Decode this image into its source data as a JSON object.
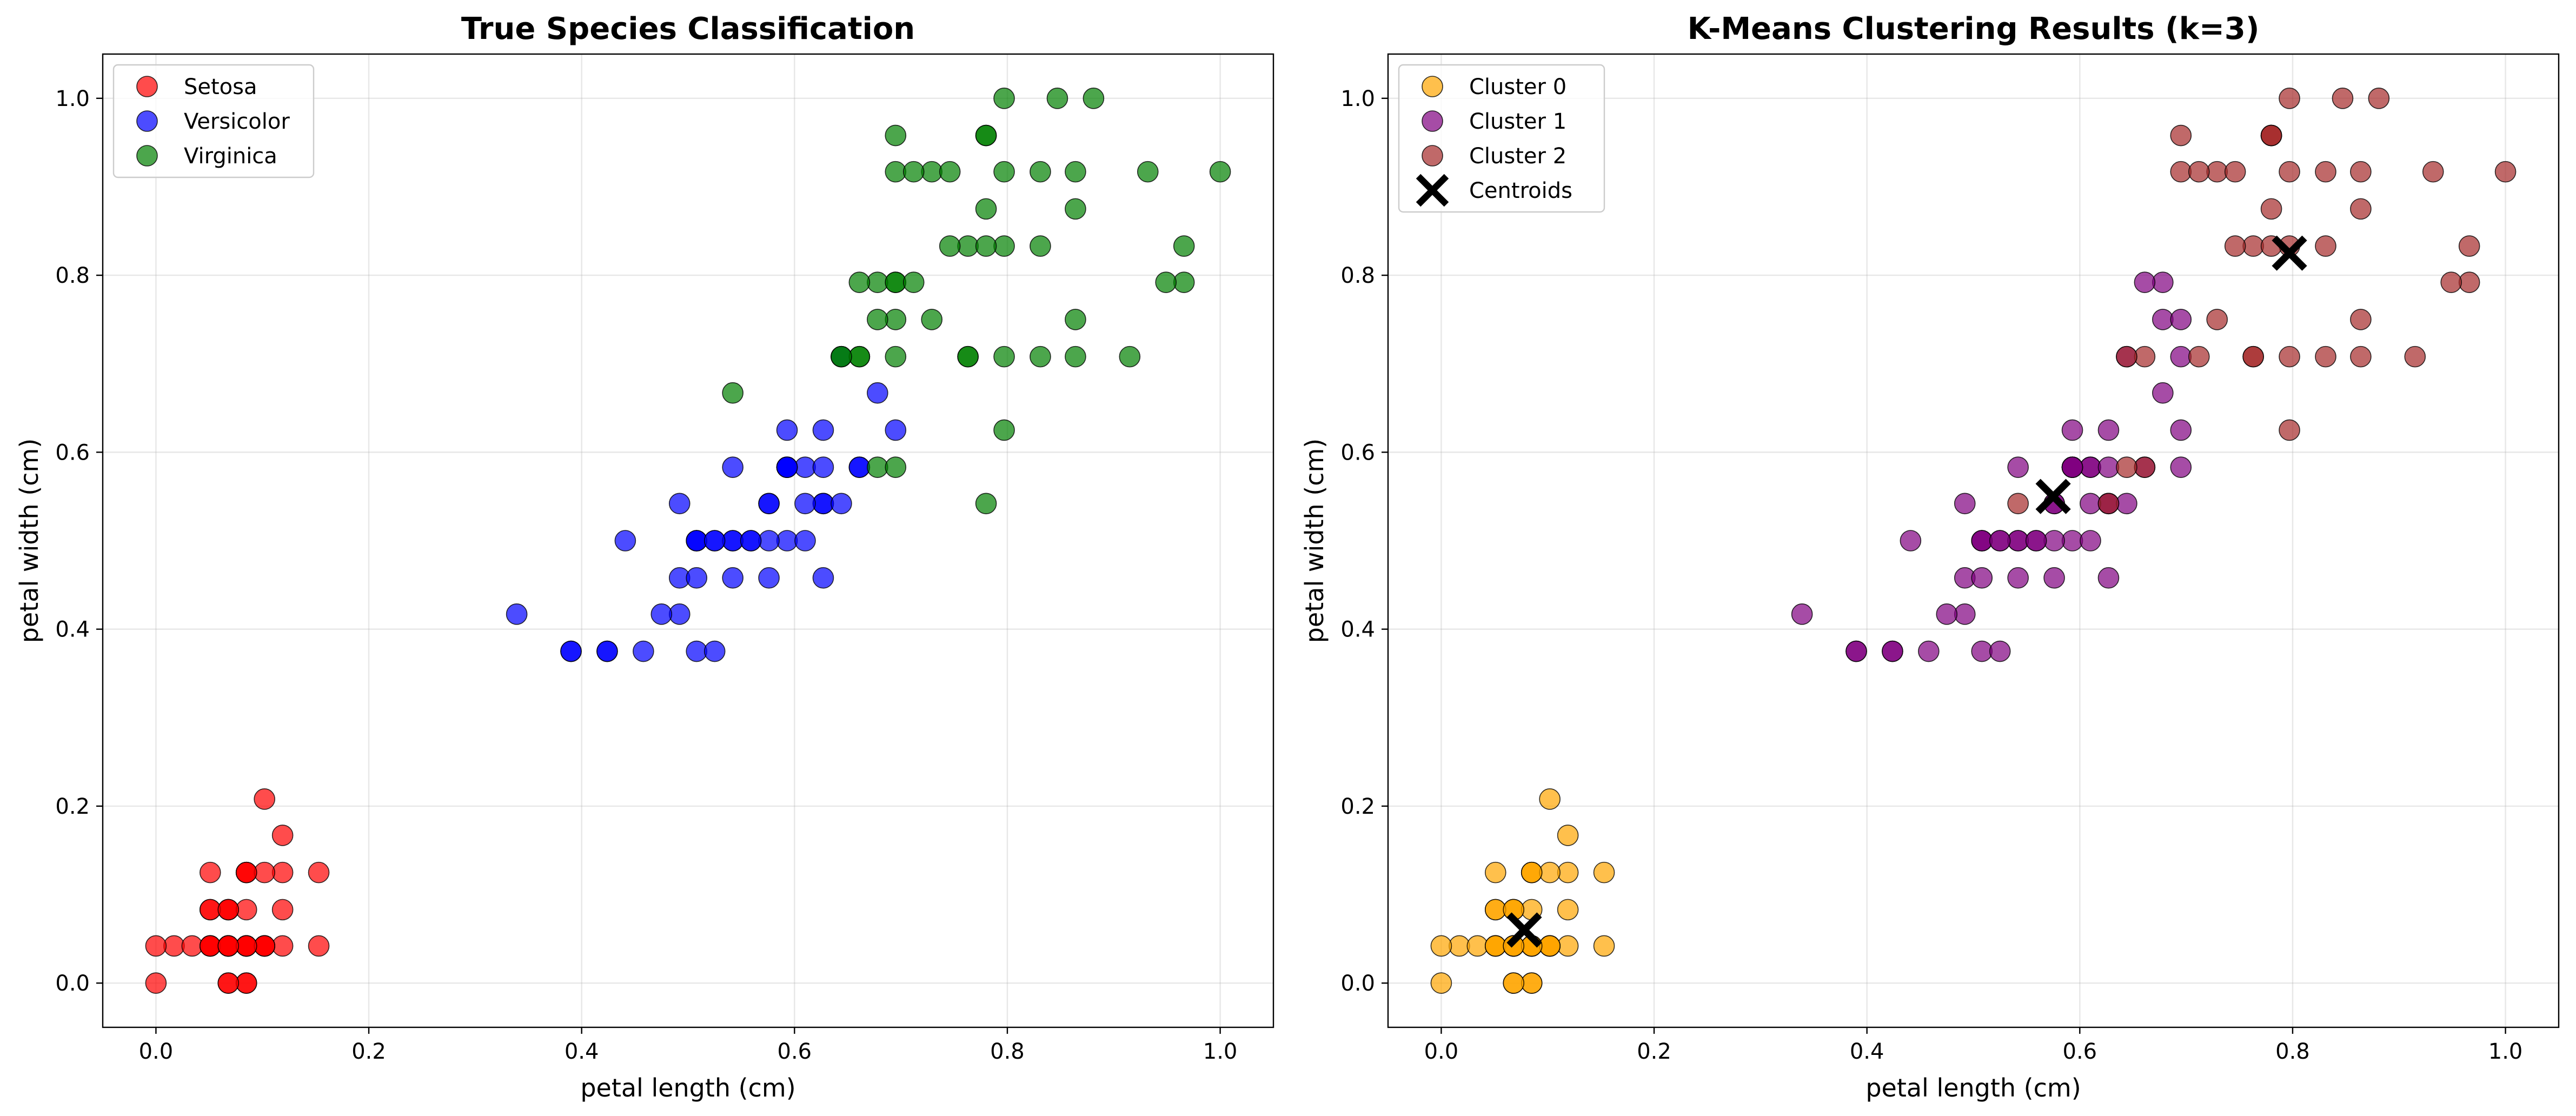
{
  "chart_data": [
    {
      "type": "scatter",
      "title": "True Species Classification",
      "xlabel": "petal length (cm)",
      "ylabel": "petal width (cm)",
      "xlim": [
        -0.05,
        1.05
      ],
      "ylim": [
        -0.05,
        1.05
      ],
      "xticks": [
        "0.0",
        "0.2",
        "0.4",
        "0.6",
        "0.8",
        "1.0"
      ],
      "yticks": [
        "0.0",
        "0.2",
        "0.4",
        "0.6",
        "0.8",
        "1.0"
      ],
      "grid": true,
      "legend_position": "upper-left",
      "series": [
        {
          "name": "Setosa",
          "color": "#ff0000",
          "x": [
            0.068,
            0.068,
            0.051,
            0.085,
            0.068,
            0.119,
            0.068,
            0.085,
            0.068,
            0.085,
            0.085,
            0.102,
            0.068,
            0.0,
            0.017,
            0.085,
            0.051,
            0.068,
            0.119,
            0.085,
            0.119,
            0.085,
            0.0,
            0.119,
            0.153,
            0.102,
            0.102,
            0.085,
            0.068,
            0.102,
            0.102,
            0.085,
            0.085,
            0.068,
            0.085,
            0.034,
            0.051,
            0.068,
            0.051,
            0.085,
            0.051,
            0.051,
            0.051,
            0.102,
            0.153,
            0.068,
            0.102,
            0.068,
            0.085,
            0.068
          ],
          "y": [
            0.042,
            0.042,
            0.042,
            0.042,
            0.042,
            0.125,
            0.083,
            0.042,
            0.042,
            0.0,
            0.042,
            0.042,
            0.0,
            0.0,
            0.042,
            0.125,
            0.125,
            0.083,
            0.083,
            0.083,
            0.042,
            0.125,
            0.042,
            0.167,
            0.042,
            0.042,
            0.125,
            0.042,
            0.042,
            0.042,
            0.042,
            0.125,
            0.0,
            0.042,
            0.042,
            0.042,
            0.042,
            0.0,
            0.042,
            0.042,
            0.083,
            0.083,
            0.042,
            0.208,
            0.125,
            0.083,
            0.042,
            0.042,
            0.042,
            0.042
          ]
        },
        {
          "name": "Versicolor",
          "color": "#0000ff",
          "x": [
            0.627,
            0.593,
            0.661,
            0.508,
            0.61,
            0.593,
            0.627,
            0.39,
            0.61,
            0.492,
            0.424,
            0.542,
            0.508,
            0.627,
            0.441,
            0.576,
            0.593,
            0.525,
            0.593,
            0.492,
            0.644,
            0.508,
            0.661,
            0.627,
            0.559,
            0.576,
            0.644,
            0.678,
            0.593,
            0.424,
            0.475,
            0.458,
            0.492,
            0.695,
            0.593,
            0.593,
            0.627,
            0.576,
            0.525,
            0.508,
            0.576,
            0.61,
            0.508,
            0.39,
            0.542,
            0.542,
            0.542,
            0.559,
            0.339,
            0.525
          ],
          "y": [
            0.542,
            0.583,
            0.583,
            0.5,
            0.583,
            0.5,
            0.625,
            0.375,
            0.5,
            0.542,
            0.375,
            0.583,
            0.375,
            0.542,
            0.5,
            0.542,
            0.583,
            0.375,
            0.583,
            0.417,
            0.708,
            0.5,
            0.583,
            0.458,
            0.5,
            0.542,
            0.542,
            0.667,
            0.583,
            0.375,
            0.417,
            0.375,
            0.458,
            0.625,
            0.583,
            0.625,
            0.583,
            0.5,
            0.5,
            0.5,
            0.458,
            0.542,
            0.458,
            0.375,
            0.5,
            0.458,
            0.5,
            0.5,
            0.417,
            0.5
          ]
        },
        {
          "name": "Virginica",
          "color": "#008000",
          "x": [
            0.847,
            0.695,
            0.831,
            0.797,
            0.864,
            0.966,
            0.542,
            0.915,
            0.864,
            0.881,
            0.695,
            0.729,
            0.763,
            0.678,
            0.695,
            0.729,
            0.763,
            0.932,
            1.0,
            0.678,
            0.797,
            0.661,
            0.966,
            0.661,
            0.797,
            0.831,
            0.644,
            0.661,
            0.78,
            0.797,
            0.864,
            0.949,
            0.78,
            0.695,
            0.78,
            0.864,
            0.78,
            0.763,
            0.644,
            0.746,
            0.78,
            0.695,
            0.695,
            0.831,
            0.797,
            0.712,
            0.678,
            0.712,
            0.746,
            0.695
          ],
          "y": [
            1.0,
            0.75,
            0.833,
            0.708,
            0.875,
            0.833,
            0.667,
            0.708,
            0.708,
            1.0,
            0.792,
            0.75,
            0.833,
            0.792,
            0.958,
            0.917,
            0.708,
            0.917,
            0.917,
            0.583,
            0.917,
            0.792,
            0.792,
            0.708,
            0.833,
            0.708,
            0.708,
            0.708,
            0.833,
            0.625,
            0.75,
            0.792,
            0.875,
            0.583,
            0.542,
            0.917,
            0.958,
            0.708,
            0.708,
            0.833,
            0.958,
            0.917,
            0.792,
            0.917,
            1.0,
            0.917,
            0.75,
            0.792,
            0.917,
            0.708
          ]
        }
      ]
    },
    {
      "type": "scatter",
      "title": "K-Means Clustering Results (k=3)",
      "xlabel": "petal length (cm)",
      "ylabel": "petal width (cm)",
      "xlim": [
        -0.05,
        1.05
      ],
      "ylim": [
        -0.05,
        1.05
      ],
      "xticks": [
        "0.0",
        "0.2",
        "0.4",
        "0.6",
        "0.8",
        "1.0"
      ],
      "yticks": [
        "0.0",
        "0.2",
        "0.4",
        "0.6",
        "0.8",
        "1.0"
      ],
      "grid": true,
      "legend_position": "upper-left",
      "series": [
        {
          "name": "Cluster 0",
          "color": "#ffa500",
          "x": [
            0.068,
            0.068,
            0.051,
            0.085,
            0.068,
            0.119,
            0.068,
            0.085,
            0.068,
            0.085,
            0.085,
            0.102,
            0.068,
            0.0,
            0.017,
            0.085,
            0.051,
            0.068,
            0.119,
            0.085,
            0.119,
            0.085,
            0.0,
            0.119,
            0.153,
            0.102,
            0.102,
            0.085,
            0.068,
            0.102,
            0.102,
            0.085,
            0.085,
            0.068,
            0.085,
            0.034,
            0.051,
            0.068,
            0.051,
            0.085,
            0.051,
            0.051,
            0.051,
            0.102,
            0.153,
            0.068,
            0.102,
            0.068,
            0.085,
            0.068
          ],
          "y": [
            0.042,
            0.042,
            0.042,
            0.042,
            0.042,
            0.125,
            0.083,
            0.042,
            0.042,
            0.0,
            0.042,
            0.042,
            0.0,
            0.0,
            0.042,
            0.125,
            0.125,
            0.083,
            0.083,
            0.083,
            0.042,
            0.125,
            0.042,
            0.167,
            0.042,
            0.042,
            0.125,
            0.042,
            0.042,
            0.042,
            0.042,
            0.125,
            0.0,
            0.042,
            0.042,
            0.042,
            0.042,
            0.0,
            0.042,
            0.042,
            0.083,
            0.083,
            0.042,
            0.208,
            0.125,
            0.083,
            0.042,
            0.042,
            0.042,
            0.042
          ]
        },
        {
          "name": "Cluster 1",
          "color": "#800080",
          "x": [
            0.627,
            0.593,
            0.61,
            0.508,
            0.61,
            0.593,
            0.627,
            0.39,
            0.61,
            0.492,
            0.424,
            0.542,
            0.508,
            0.627,
            0.441,
            0.576,
            0.593,
            0.525,
            0.593,
            0.492,
            0.644,
            0.508,
            0.661,
            0.627,
            0.559,
            0.576,
            0.644,
            0.678,
            0.593,
            0.424,
            0.475,
            0.458,
            0.492,
            0.695,
            0.593,
            0.593,
            0.627,
            0.576,
            0.525,
            0.508,
            0.576,
            0.61,
            0.508,
            0.39,
            0.542,
            0.542,
            0.542,
            0.559,
            0.339,
            0.525,
            0.678,
            0.661,
            0.678,
            0.695,
            0.695,
            0.695
          ],
          "y": [
            0.542,
            0.583,
            0.583,
            0.5,
            0.583,
            0.5,
            0.625,
            0.375,
            0.5,
            0.542,
            0.375,
            0.583,
            0.375,
            0.542,
            0.5,
            0.542,
            0.583,
            0.375,
            0.583,
            0.417,
            0.708,
            0.5,
            0.583,
            0.458,
            0.5,
            0.542,
            0.542,
            0.667,
            0.583,
            0.375,
            0.417,
            0.375,
            0.458,
            0.625,
            0.583,
            0.625,
            0.583,
            0.5,
            0.5,
            0.5,
            0.458,
            0.542,
            0.458,
            0.375,
            0.5,
            0.458,
            0.5,
            0.5,
            0.417,
            0.5,
            0.792,
            0.792,
            0.75,
            0.708,
            0.75,
            0.583
          ]
        },
        {
          "name": "Cluster 2",
          "color": "#a52a2a",
          "x": [
            0.847,
            0.831,
            0.797,
            0.864,
            0.966,
            0.542,
            0.915,
            0.864,
            0.881,
            0.729,
            0.763,
            0.729,
            0.763,
            0.932,
            1.0,
            0.797,
            0.966,
            0.797,
            0.831,
            0.661,
            0.78,
            0.797,
            0.864,
            0.949,
            0.78,
            0.78,
            0.864,
            0.78,
            0.763,
            0.644,
            0.746,
            0.78,
            0.695,
            0.831,
            0.797,
            0.712,
            0.712,
            0.746,
            0.695,
            0.661,
            0.644,
            0.627
          ],
          "y": [
            1.0,
            0.833,
            0.708,
            0.875,
            0.833,
            0.542,
            0.708,
            0.708,
            1.0,
            0.75,
            0.833,
            0.917,
            0.708,
            0.917,
            0.917,
            0.917,
            0.792,
            0.833,
            0.708,
            0.708,
            0.833,
            0.625,
            0.75,
            0.792,
            0.875,
            0.958,
            0.917,
            0.958,
            0.708,
            0.708,
            0.833,
            0.958,
            0.917,
            0.917,
            1.0,
            0.917,
            0.708,
            0.917,
            0.958,
            0.583,
            0.583,
            0.542
          ]
        },
        {
          "name": "Centroids",
          "marker": "x",
          "color": "#000000",
          "x": [
            0.078,
            0.575,
            0.797
          ],
          "y": [
            0.06,
            0.55,
            0.825
          ]
        }
      ]
    }
  ]
}
